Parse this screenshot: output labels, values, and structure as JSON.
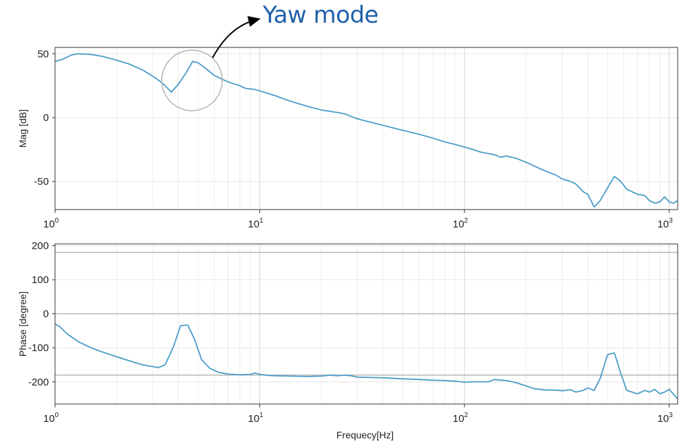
{
  "annotation": {
    "text": "Yaw mode"
  },
  "chart_data": [
    {
      "type": "line",
      "ylabel": "Mag [dB]",
      "xscale": "log",
      "xlim": [
        1,
        1100
      ],
      "ylim": [
        -72,
        55
      ],
      "yticks": [
        50,
        0,
        -50
      ],
      "ytick_labels": [
        "50",
        "0",
        "-50"
      ],
      "xtick_labels": [
        {
          "base": "10",
          "exp": "0"
        },
        {
          "base": "10",
          "exp": "1"
        },
        {
          "base": "10",
          "exp": "2"
        },
        {
          "base": "10",
          "exp": "3"
        }
      ],
      "grid": true,
      "line_color": "#4a9cc9",
      "x": [
        1.0,
        1.1,
        1.2,
        1.3,
        1.5,
        1.7,
        2.0,
        2.3,
        2.7,
        3.1,
        3.4,
        3.7,
        4.0,
        4.4,
        4.7,
        5.0,
        5.5,
        6.0,
        7.0,
        8.0,
        8.5,
        9.5,
        10,
        12,
        14,
        17,
        20,
        24,
        26,
        30,
        40,
        50,
        60,
        70,
        80,
        90,
        100,
        110,
        120,
        140,
        150,
        160,
        180,
        200,
        220,
        250,
        280,
        300,
        330,
        350,
        380,
        400,
        430,
        460,
        500,
        540,
        580,
        620,
        700,
        760,
        800,
        850,
        900,
        950,
        1000,
        1050,
        1100
      ],
      "y": [
        44,
        46,
        49,
        50,
        49.5,
        48,
        45,
        42,
        37,
        31,
        26,
        20,
        26,
        36,
        44,
        43,
        38,
        33,
        28,
        25,
        23,
        22,
        21,
        17,
        13,
        9,
        6,
        4,
        3,
        -1,
        -6,
        -10,
        -13,
        -16,
        -19,
        -21,
        -23,
        -25,
        -27,
        -29,
        -31,
        -30,
        -32,
        -35,
        -38,
        -42,
        -45,
        -48,
        -50,
        -52,
        -58,
        -60,
        -70,
        -65,
        -55,
        -46,
        -50,
        -56,
        -60,
        -61,
        -65,
        -67,
        -66,
        -62,
        -66,
        -67,
        -65
      ]
    },
    {
      "type": "line",
      "ylabel": "Phase [degree]",
      "xlabel": "Frequecy[Hz]",
      "xscale": "log",
      "xlim": [
        1,
        1100
      ],
      "ylim": [
        -265,
        205
      ],
      "yticks": [
        200,
        100,
        0,
        -100,
        -200
      ],
      "ytick_labels": [
        "200",
        "100",
        "0",
        "-100",
        "-200"
      ],
      "reference_lines": [
        180,
        0,
        -180
      ],
      "xtick_labels": [
        {
          "base": "10",
          "exp": "0"
        },
        {
          "base": "10",
          "exp": "1"
        },
        {
          "base": "10",
          "exp": "2"
        },
        {
          "base": "10",
          "exp": "3"
        }
      ],
      "grid": true,
      "line_color": "#4a9cc9",
      "x": [
        1.0,
        1.05,
        1.15,
        1.3,
        1.5,
        1.7,
        2.0,
        2.3,
        2.6,
        2.8,
        3.0,
        3.2,
        3.45,
        3.8,
        4.1,
        4.45,
        4.8,
        5.2,
        5.7,
        6.3,
        7.0,
        8.0,
        9.0,
        9.5,
        10,
        11,
        12,
        14,
        17,
        20,
        22,
        24,
        26,
        28,
        30,
        40,
        50,
        60,
        70,
        80,
        90,
        100,
        110,
        130,
        140,
        150,
        160,
        180,
        200,
        220,
        250,
        280,
        300,
        330,
        350,
        380,
        400,
        430,
        460,
        500,
        540,
        580,
        620,
        700,
        760,
        800,
        850,
        900,
        950,
        1000,
        1100
      ],
      "y": [
        -30,
        -37,
        -60,
        -82,
        -100,
        -112,
        -126,
        -138,
        -148,
        -152,
        -155,
        -158,
        -150,
        -95,
        -35,
        -33,
        -75,
        -135,
        -160,
        -172,
        -177,
        -179,
        -178,
        -174,
        -178,
        -181,
        -182,
        -183,
        -184,
        -183,
        -180,
        -182,
        -180,
        -182,
        -186,
        -188,
        -191,
        -193,
        -195,
        -196,
        -198,
        -201,
        -200,
        -200,
        -193,
        -195,
        -196,
        -203,
        -212,
        -220,
        -224,
        -224,
        -226,
        -223,
        -230,
        -225,
        -218,
        -225,
        -190,
        -120,
        -115,
        -175,
        -225,
        -235,
        -225,
        -230,
        -222,
        -235,
        -230,
        -222,
        -250
      ]
    }
  ]
}
